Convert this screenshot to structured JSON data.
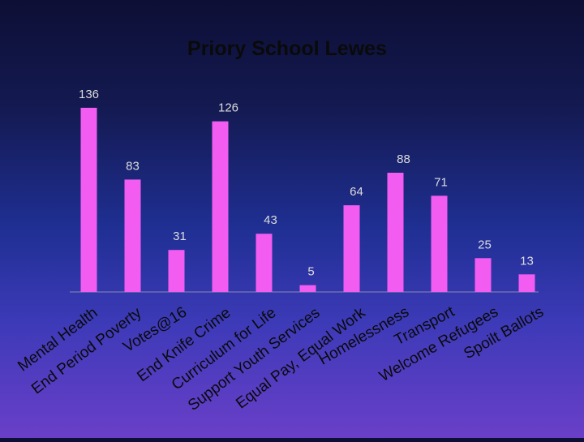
{
  "chart_data": {
    "type": "bar",
    "title": "Priory School Lewes",
    "categories": [
      "Mental Health",
      "End Period Poverty",
      "Votes@16",
      "End Knife Crime",
      "Curriculum for Life",
      "Support Youth Services",
      "Equal Pay, Equal Work",
      "Homelessness",
      "Transport",
      "Welcome Refugees",
      "Spoilt Ballots"
    ],
    "values": [
      136,
      83,
      31,
      126,
      43,
      5,
      64,
      88,
      71,
      25,
      13
    ],
    "xlabel": "",
    "ylabel": "",
    "ylim": [
      0,
      140
    ],
    "grid": false,
    "legend": "none",
    "colors": {
      "bar": "#f25cf0",
      "axis": "#8a8ab0",
      "text": "#0a0a0a",
      "label_text": "#dcdcdc"
    }
  }
}
